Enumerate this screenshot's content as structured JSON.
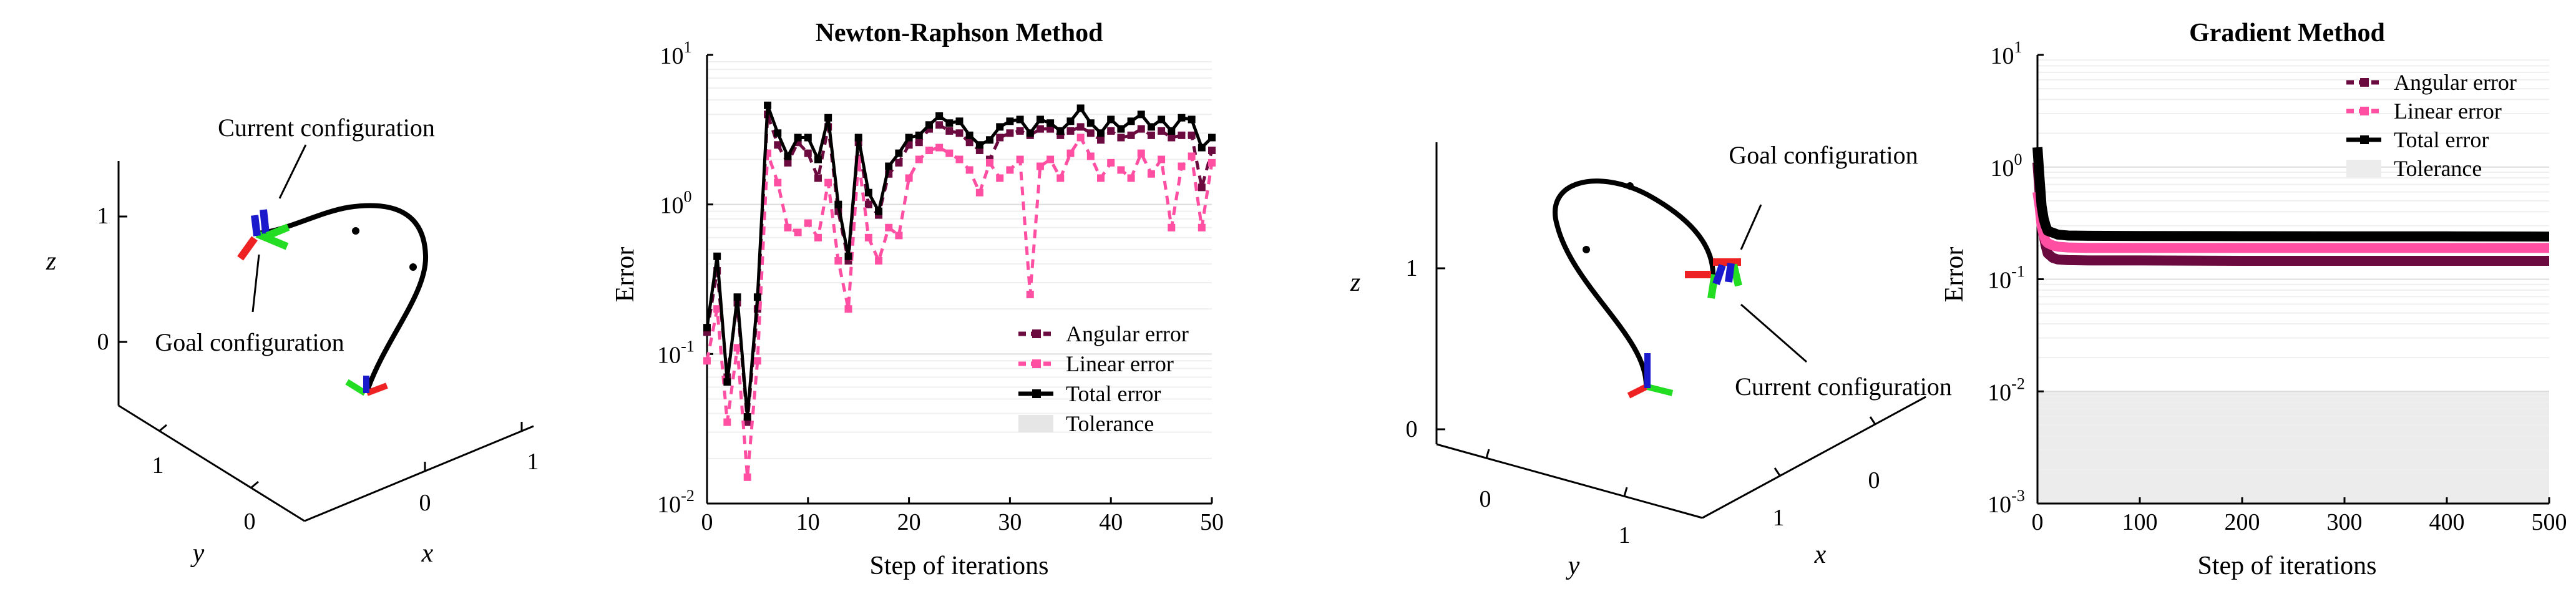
{
  "chart_data": [
    {
      "type": "3d-line",
      "panel": "a",
      "axis_labels": {
        "x": "x",
        "y": "y",
        "z": "z"
      },
      "ticks": {
        "x": [
          "0",
          "1"
        ],
        "y": [
          "0",
          "1"
        ],
        "z": [
          "0",
          "1"
        ]
      },
      "annotations": [
        "Current configuration",
        "Goal configuration"
      ],
      "frame_colors": {
        "x_axis": "#ee2222",
        "y_axis": "#22dd22",
        "z_axis": "#1a1acc"
      }
    },
    {
      "type": "line",
      "panel": "b",
      "title": "Newton-Raphson Method",
      "xlabel": "Step of iterations",
      "ylabel": "Error",
      "xlim": [
        0,
        50
      ],
      "ylim": [
        0.01,
        10
      ],
      "yscale": "log",
      "xticks": [
        "0",
        "10",
        "20",
        "30",
        "40",
        "50"
      ],
      "yticks": [
        {
          "base": "10",
          "exp": "-2"
        },
        {
          "base": "10",
          "exp": "-1"
        },
        {
          "base": "10",
          "exp": "0"
        },
        {
          "base": "10",
          "exp": "1"
        }
      ],
      "grid": true,
      "legend_position": "bottom-right",
      "tolerance": {
        "name": "Tolerance",
        "ymin": 0.01,
        "ymax": 0.0101,
        "color": "#e6e6e6"
      },
      "x": [
        0,
        1,
        2,
        3,
        4,
        5,
        6,
        7,
        8,
        9,
        10,
        11,
        12,
        13,
        14,
        15,
        16,
        17,
        18,
        19,
        20,
        21,
        22,
        23,
        24,
        25,
        26,
        27,
        28,
        29,
        30,
        31,
        32,
        33,
        34,
        35,
        36,
        37,
        38,
        39,
        40,
        41,
        42,
        43,
        44,
        45,
        46,
        47,
        48,
        49,
        50
      ],
      "series": [
        {
          "name": "Angular error",
          "color": "#6b0a3e",
          "style": "dashed",
          "values": [
            0.14,
            0.36,
            0.07,
            0.22,
            0.035,
            0.2,
            4.0,
            2.5,
            1.9,
            2.6,
            2.2,
            1.5,
            3.3,
            0.9,
            0.42,
            2.6,
            1.0,
            0.85,
            1.6,
            1.9,
            2.5,
            2.6,
            3.2,
            3.4,
            3.1,
            3.0,
            2.6,
            2.3,
            2.0,
            2.8,
            3.0,
            3.1,
            2.9,
            3.2,
            3.2,
            2.9,
            3.1,
            3.3,
            3.0,
            2.7,
            3.1,
            2.8,
            2.9,
            3.2,
            2.9,
            3.1,
            2.8,
            2.9,
            2.9,
            1.3,
            2.3
          ]
        },
        {
          "name": "Linear error",
          "color": "#ff4fa3",
          "style": "dashed",
          "values": [
            0.09,
            0.2,
            0.035,
            0.11,
            0.015,
            0.09,
            2.2,
            1.4,
            0.7,
            0.65,
            0.75,
            0.6,
            1.4,
            0.42,
            0.2,
            2.0,
            0.6,
            0.42,
            0.7,
            0.62,
            1.5,
            2.0,
            2.3,
            2.4,
            2.2,
            2.0,
            1.7,
            1.2,
            1.9,
            1.5,
            1.7,
            2.0,
            0.25,
            1.8,
            2.0,
            1.5,
            2.2,
            2.8,
            2.1,
            1.5,
            1.9,
            1.7,
            1.5,
            2.2,
            1.6,
            2.0,
            0.7,
            1.8,
            2.1,
            0.7,
            1.9
          ]
        },
        {
          "name": "Total error",
          "color": "#000000",
          "style": "solid",
          "values": [
            0.15,
            0.45,
            0.065,
            0.24,
            0.038,
            0.24,
            4.6,
            3.0,
            2.1,
            2.8,
            2.8,
            2.0,
            3.8,
            1.0,
            0.45,
            2.8,
            1.2,
            0.9,
            1.8,
            2.2,
            2.8,
            2.9,
            3.4,
            3.9,
            3.5,
            3.6,
            2.9,
            2.5,
            2.7,
            3.3,
            3.6,
            3.7,
            3.0,
            3.7,
            3.5,
            3.1,
            3.6,
            4.4,
            3.5,
            3.0,
            3.7,
            3.2,
            3.6,
            4.0,
            3.3,
            3.7,
            3.1,
            3.8,
            3.7,
            2.4,
            2.8
          ]
        }
      ]
    },
    {
      "type": "3d-line",
      "panel": "c",
      "axis_labels": {
        "x": "x",
        "y": "y",
        "z": "z"
      },
      "ticks": {
        "x": [
          "0",
          "1"
        ],
        "y": [
          "0",
          "1"
        ],
        "z": [
          "0",
          "1"
        ]
      },
      "annotations": [
        "Goal configuration",
        "Current configuration"
      ]
    },
    {
      "type": "line",
      "panel": "d",
      "title": "Gradient Method",
      "xlabel": "Step of iterations",
      "ylabel": "Error",
      "xlim": [
        0,
        500
      ],
      "ylim": [
        0.001,
        10
      ],
      "yscale": "log",
      "xticks": [
        "0",
        "100",
        "200",
        "300",
        "400",
        "500"
      ],
      "yticks": [
        {
          "base": "10",
          "exp": "-3"
        },
        {
          "base": "10",
          "exp": "-2"
        },
        {
          "base": "10",
          "exp": "-1"
        },
        {
          "base": "10",
          "exp": "0"
        },
        {
          "base": "10",
          "exp": "1"
        }
      ],
      "grid": true,
      "legend_position": "top-right",
      "tolerance": {
        "name": "Tolerance",
        "ymin": 0.001,
        "ymax": 0.01,
        "color": "#ececec"
      },
      "x": [
        0,
        2,
        4,
        6,
        8,
        10,
        15,
        20,
        30,
        50,
        100,
        200,
        300,
        400,
        500
      ],
      "series": [
        {
          "name": "Angular error",
          "color": "#6b0a3e",
          "style": "dashed",
          "values": [
            1.1,
            0.6,
            0.35,
            0.25,
            0.2,
            0.17,
            0.155,
            0.15,
            0.148,
            0.147,
            0.147,
            0.146,
            0.146,
            0.146,
            0.146
          ]
        },
        {
          "name": "Linear error",
          "color": "#ff4fa3",
          "style": "dashed",
          "values": [
            0.6,
            0.45,
            0.3,
            0.25,
            0.22,
            0.21,
            0.2,
            0.195,
            0.192,
            0.19,
            0.19,
            0.19,
            0.19,
            0.19,
            0.19
          ]
        },
        {
          "name": "Total error",
          "color": "#000000",
          "style": "solid",
          "values": [
            1.5,
            0.8,
            0.45,
            0.35,
            0.3,
            0.27,
            0.26,
            0.25,
            0.245,
            0.244,
            0.243,
            0.242,
            0.241,
            0.241,
            0.24
          ]
        }
      ]
    }
  ]
}
